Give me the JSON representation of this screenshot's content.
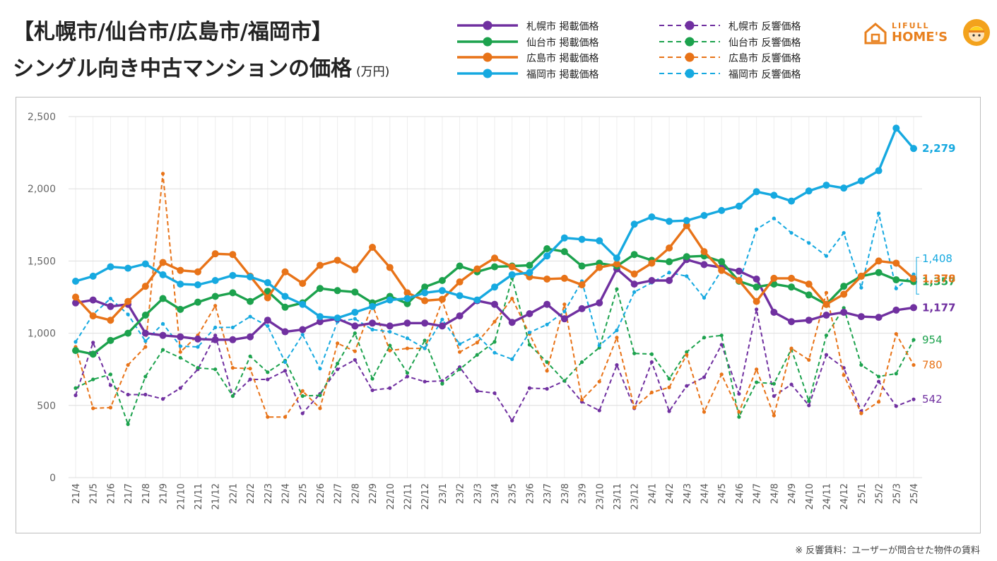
{
  "header": {
    "title_line1": "【札幌市/仙台市/広島市/福岡市】",
    "title_line2": "シングル向き中古マンションの価格",
    "unit": "(万円)"
  },
  "logo": {
    "top_text": "LIFULL",
    "main_text": "HOME'S"
  },
  "footnote": "※ 反響賃料：ユーザーが問合せた物件の賃料",
  "chart_data": {
    "type": "line",
    "title": "シングル向き中古マンションの価格",
    "ylabel": "(万円)",
    "ylim": [
      0,
      2500
    ],
    "yticks": [
      0,
      500,
      1000,
      1500,
      2000,
      2500
    ],
    "ytick_labels": [
      "0",
      "500",
      "1,000",
      "1,500",
      "2,000",
      "2,500"
    ],
    "grid": true,
    "categories": [
      "21/4",
      "21/5",
      "21/6",
      "21/7",
      "21/8",
      "21/9",
      "21/10",
      "21/11",
      "21/12",
      "22/1",
      "22/2",
      "22/3",
      "22/4",
      "22/5",
      "22/6",
      "22/7",
      "22/8",
      "22/9",
      "22/10",
      "22/11",
      "22/12",
      "23/1",
      "23/2",
      "23/3",
      "23/4",
      "23/5",
      "23/6",
      "23/7",
      "23/8",
      "23/9",
      "23/10",
      "23/11",
      "23/12",
      "24/1",
      "24/2",
      "24/3",
      "24/4",
      "24/5",
      "24/6",
      "24/7",
      "24/8",
      "24/9",
      "24/10",
      "24/11",
      "24/12",
      "25/1",
      "25/2",
      "25/3",
      "25/4"
    ],
    "series": [
      {
        "name": "札幌市 掲載価格",
        "color": "#7030a0",
        "style": "solid",
        "end_label": "1,177",
        "values": [
          1210,
          1230,
          1185,
          1200,
          1000,
          985,
          975,
          960,
          955,
          955,
          975,
          1090,
          1010,
          1025,
          1080,
          1100,
          1050,
          1070,
          1050,
          1070,
          1070,
          1050,
          1120,
          1225,
          1200,
          1075,
          1135,
          1200,
          1100,
          1170,
          1210,
          1445,
          1340,
          1365,
          1365,
          1510,
          1475,
          1455,
          1430,
          1375,
          1145,
          1080,
          1090,
          1125,
          1145,
          1115,
          1110,
          1160,
          1177
        ]
      },
      {
        "name": "仙台市 掲載価格",
        "color": "#1ca24d",
        "style": "solid",
        "end_label": "1,357",
        "values": [
          880,
          855,
          950,
          1000,
          1125,
          1240,
          1165,
          1215,
          1255,
          1280,
          1220,
          1290,
          1180,
          1210,
          1310,
          1295,
          1285,
          1210,
          1255,
          1205,
          1320,
          1365,
          1465,
          1425,
          1460,
          1465,
          1470,
          1585,
          1565,
          1465,
          1485,
          1465,
          1545,
          1505,
          1495,
          1530,
          1535,
          1495,
          1360,
          1320,
          1340,
          1320,
          1265,
          1200,
          1325,
          1395,
          1420,
          1370,
          1357
        ]
      },
      {
        "name": "広島市 掲載価格",
        "color": "#e87318",
        "style": "solid",
        "end_label": "1,378",
        "values": [
          1250,
          1120,
          1090,
          1220,
          1325,
          1490,
          1435,
          1425,
          1550,
          1545,
          1395,
          1245,
          1425,
          1345,
          1470,
          1505,
          1440,
          1595,
          1455,
          1280,
          1225,
          1235,
          1355,
          1445,
          1520,
          1460,
          1390,
          1375,
          1380,
          1335,
          1455,
          1480,
          1410,
          1485,
          1590,
          1745,
          1565,
          1435,
          1365,
          1220,
          1380,
          1380,
          1340,
          1200,
          1270,
          1395,
          1500,
          1485,
          1378
        ]
      },
      {
        "name": "福岡市 掲載価格",
        "color": "#16a9e0",
        "style": "solid",
        "end_label": "2,279",
        "values": [
          1360,
          1395,
          1460,
          1450,
          1480,
          1405,
          1340,
          1335,
          1365,
          1400,
          1390,
          1350,
          1255,
          1200,
          1115,
          1105,
          1145,
          1185,
          1230,
          1240,
          1280,
          1295,
          1260,
          1230,
          1320,
          1405,
          1420,
          1535,
          1660,
          1650,
          1640,
          1520,
          1755,
          1805,
          1775,
          1780,
          1815,
          1850,
          1880,
          1980,
          1955,
          1915,
          1985,
          2025,
          2005,
          2055,
          2125,
          2420,
          2279
        ]
      },
      {
        "name": "札幌市 反響価格",
        "color": "#7030a0",
        "style": "dashed",
        "end_label": "542",
        "values": [
          570,
          935,
          640,
          575,
          575,
          545,
          620,
          750,
          985,
          565,
          680,
          680,
          740,
          445,
          580,
          750,
          815,
          605,
          620,
          700,
          665,
          670,
          765,
          600,
          585,
          395,
          620,
          615,
          670,
          525,
          465,
          780,
          480,
          800,
          460,
          635,
          695,
          920,
          580,
          1165,
          565,
          645,
          500,
          850,
          760,
          460,
          665,
          495,
          542
        ]
      },
      {
        "name": "仙台市 反響価格",
        "color": "#1ca24d",
        "style": "dashed",
        "end_label": "954",
        "values": [
          620,
          680,
          715,
          370,
          700,
          885,
          830,
          760,
          750,
          565,
          840,
          730,
          810,
          565,
          570,
          790,
          1000,
          685,
          915,
          725,
          950,
          650,
          750,
          850,
          940,
          1380,
          920,
          800,
          670,
          800,
          900,
          1305,
          860,
          855,
          685,
          870,
          970,
          985,
          420,
          660,
          650,
          890,
          530,
          985,
          1175,
          780,
          700,
          720,
          954
        ]
      },
      {
        "name": "広島市 反響価格",
        "color": "#e87318",
        "style": "dashed",
        "end_label": "780",
        "values": [
          905,
          480,
          485,
          780,
          905,
          2105,
          870,
          985,
          1190,
          760,
          755,
          420,
          420,
          600,
          480,
          930,
          875,
          1195,
          880,
          895,
          895,
          1225,
          870,
          935,
          1080,
          1240,
          995,
          740,
          1200,
          540,
          665,
          970,
          485,
          590,
          625,
          850,
          455,
          715,
          455,
          750,
          430,
          895,
          815,
          1280,
          710,
          445,
          525,
          995,
          780
        ]
      },
      {
        "name": "福岡市 反響価格",
        "color": "#16a9e0",
        "style": "dashed",
        "end_label": "1,408",
        "values": [
          940,
          1130,
          1240,
          1130,
          945,
          1065,
          910,
          905,
          1040,
          1040,
          1115,
          1050,
          800,
          990,
          755,
          1080,
          1100,
          1025,
          1010,
          965,
          895,
          1095,
          925,
          985,
          865,
          820,
          1005,
          1060,
          1150,
          1360,
          915,
          1020,
          1285,
          1350,
          1420,
          1395,
          1245,
          1435,
          1350,
          1720,
          1795,
          1695,
          1625,
          1535,
          1695,
          1315,
          1830,
          1310,
          1408
        ]
      }
    ]
  }
}
